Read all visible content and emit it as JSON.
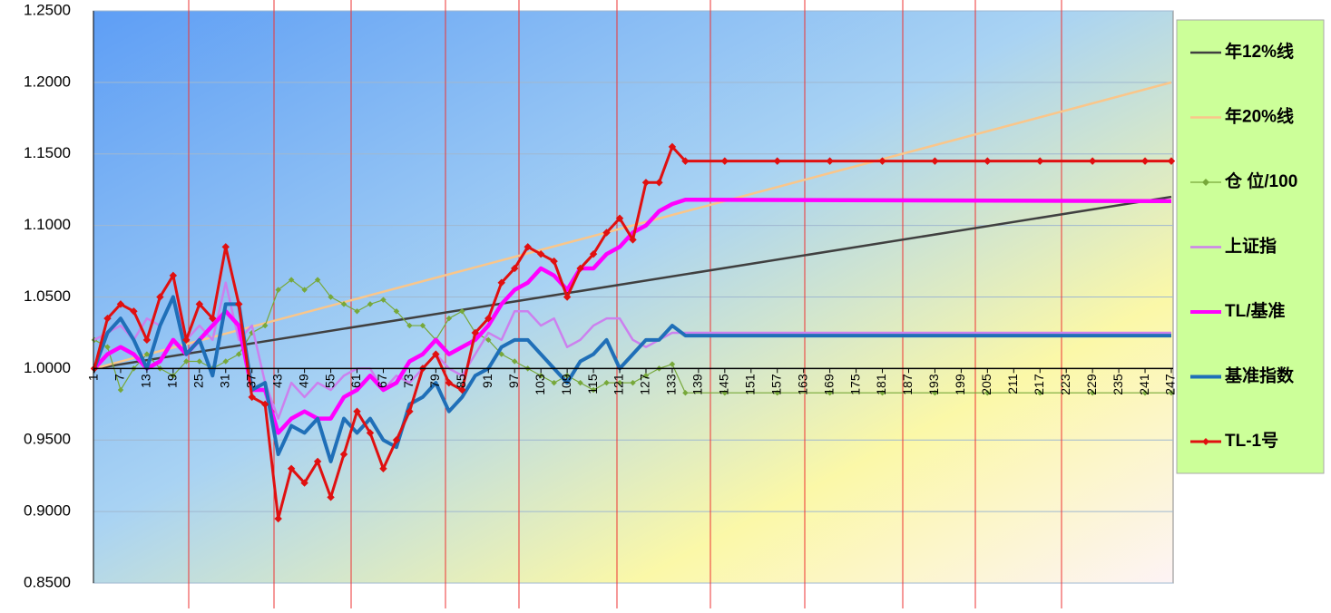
{
  "chart_data": {
    "type": "line",
    "xlim": [
      1,
      247
    ],
    "xticks": [
      1,
      7,
      13,
      19,
      25,
      31,
      37,
      43,
      49,
      55,
      61,
      67,
      73,
      79,
      85,
      91,
      97,
      103,
      109,
      115,
      121,
      127,
      133,
      139,
      145,
      151,
      157,
      163,
      169,
      175,
      181,
      187,
      193,
      199,
      205,
      211,
      217,
      223,
      229,
      235,
      241,
      247
    ],
    "ylim": [
      0.85,
      1.25
    ],
    "yticks": [
      {
        "value": 0.85,
        "label": "0.8500"
      },
      {
        "value": 0.9,
        "label": "0.9000"
      },
      {
        "value": 0.95,
        "label": "0.9500"
      },
      {
        "value": 1.0,
        "label": "1.0000"
      },
      {
        "value": 1.05,
        "label": "1.0500"
      },
      {
        "value": 1.1,
        "label": "1.1000"
      },
      {
        "value": 1.15,
        "label": "1.1500"
      },
      {
        "value": 1.2,
        "label": "1.2000"
      },
      {
        "value": 1.25,
        "label": "1.2500"
      }
    ],
    "x_axis_at": 1.0,
    "grid": true,
    "legend": "right",
    "series": [
      {
        "name": "年12%线",
        "color": "#404040",
        "width": 2.5,
        "x": [
          1,
          247
        ],
        "values": [
          1.0,
          1.12
        ]
      },
      {
        "name": "年20%线",
        "color": "#fac68a",
        "width": 2.5,
        "x": [
          1,
          247
        ],
        "values": [
          1.0,
          1.2
        ]
      },
      {
        "name": "仓 位/100",
        "color": "#77a83a",
        "width": 1.2,
        "marker": "cross",
        "x": [
          1,
          4,
          7,
          10,
          13,
          16,
          19,
          22,
          25,
          28,
          31,
          34,
          37,
          40,
          43,
          46,
          49,
          52,
          55,
          58,
          61,
          64,
          67,
          70,
          73,
          76,
          79,
          82,
          85,
          88,
          91,
          94,
          97,
          100,
          103,
          106,
          109,
          112,
          115,
          118,
          121,
          124,
          127,
          130,
          133,
          136,
          145,
          157,
          169,
          181,
          193,
          205,
          217,
          229,
          241,
          247
        ],
        "values": [
          1.02,
          1.015,
          0.985,
          1.0,
          1.01,
          1.0,
          0.995,
          1.005,
          1.005,
          1.0,
          1.005,
          1.01,
          1.025,
          1.03,
          1.055,
          1.062,
          1.055,
          1.062,
          1.05,
          1.045,
          1.04,
          1.045,
          1.048,
          1.04,
          1.03,
          1.03,
          1.02,
          1.035,
          1.04,
          1.025,
          1.02,
          1.01,
          1.005,
          1.0,
          0.995,
          0.99,
          0.995,
          0.99,
          0.985,
          0.99,
          0.99,
          0.99,
          0.995,
          1.0,
          1.003,
          0.983,
          0.983,
          0.983,
          0.983,
          0.983,
          0.983,
          0.983,
          0.983,
          0.983,
          0.983,
          0.983
        ]
      },
      {
        "name": "上证指",
        "color": "#cc80ee",
        "width": 2.5,
        "x": [
          1,
          4,
          7,
          10,
          13,
          16,
          19,
          22,
          25,
          28,
          31,
          34,
          37,
          40,
          43,
          46,
          49,
          52,
          55,
          58,
          61,
          64,
          67,
          70,
          73,
          76,
          79,
          82,
          85,
          88,
          91,
          94,
          97,
          100,
          103,
          106,
          109,
          112,
          115,
          118,
          121,
          124,
          127,
          130,
          133,
          136,
          247
        ],
        "values": [
          1.02,
          1.025,
          1.03,
          1.02,
          1.035,
          1.03,
          1.05,
          1.02,
          1.03,
          1.02,
          1.06,
          1.02,
          1.03,
          0.99,
          0.965,
          0.99,
          0.98,
          0.99,
          0.985,
          0.995,
          1.0,
          1.0,
          0.985,
          0.995,
          0.99,
          1.0,
          1.01,
          1.0,
          0.995,
          1.01,
          1.025,
          1.02,
          1.04,
          1.04,
          1.03,
          1.035,
          1.015,
          1.02,
          1.03,
          1.035,
          1.035,
          1.02,
          1.015,
          1.02,
          1.025,
          1.025,
          1.025
        ]
      },
      {
        "name": "TL/基准",
        "color": "#ff00ff",
        "width": 4.5,
        "x": [
          1,
          4,
          7,
          10,
          13,
          16,
          19,
          22,
          25,
          28,
          31,
          34,
          37,
          40,
          43,
          46,
          49,
          52,
          55,
          58,
          61,
          64,
          67,
          70,
          73,
          76,
          79,
          82,
          85,
          88,
          91,
          94,
          97,
          100,
          103,
          106,
          109,
          112,
          115,
          118,
          121,
          124,
          127,
          130,
          133,
          136,
          247
        ],
        "values": [
          1.0,
          1.01,
          1.015,
          1.01,
          1.0,
          1.005,
          1.02,
          1.01,
          1.02,
          1.03,
          1.04,
          1.03,
          0.985,
          0.985,
          0.955,
          0.965,
          0.97,
          0.965,
          0.965,
          0.98,
          0.985,
          0.995,
          0.985,
          0.99,
          1.005,
          1.01,
          1.02,
          1.01,
          1.015,
          1.02,
          1.03,
          1.045,
          1.055,
          1.06,
          1.07,
          1.065,
          1.055,
          1.07,
          1.07,
          1.08,
          1.085,
          1.095,
          1.1,
          1.11,
          1.115,
          1.118,
          1.117
        ]
      },
      {
        "name": "基准指数",
        "color": "#1f6fb8",
        "width": 4,
        "x": [
          1,
          4,
          7,
          10,
          13,
          16,
          19,
          22,
          25,
          28,
          31,
          34,
          37,
          40,
          43,
          46,
          49,
          52,
          55,
          58,
          61,
          64,
          67,
          70,
          73,
          76,
          79,
          82,
          85,
          88,
          91,
          94,
          97,
          100,
          103,
          106,
          109,
          112,
          115,
          118,
          121,
          124,
          127,
          130,
          133,
          136,
          247
        ],
        "values": [
          1.0,
          1.025,
          1.035,
          1.02,
          1.0,
          1.03,
          1.05,
          1.01,
          1.02,
          0.995,
          1.045,
          1.045,
          0.985,
          0.99,
          0.94,
          0.96,
          0.955,
          0.965,
          0.935,
          0.965,
          0.955,
          0.965,
          0.95,
          0.945,
          0.975,
          0.98,
          0.99,
          0.97,
          0.98,
          0.995,
          1.0,
          1.015,
          1.02,
          1.02,
          1.01,
          1.0,
          0.99,
          1.005,
          1.01,
          1.02,
          1.0,
          1.01,
          1.02,
          1.02,
          1.03,
          1.023,
          1.023
        ]
      },
      {
        "name": "TL-1号",
        "color": "#e01010",
        "width": 3,
        "marker": "diamond",
        "x": [
          1,
          4,
          7,
          10,
          13,
          16,
          19,
          22,
          25,
          28,
          31,
          34,
          37,
          40,
          43,
          46,
          49,
          52,
          55,
          58,
          61,
          64,
          67,
          70,
          73,
          76,
          79,
          82,
          85,
          88,
          91,
          94,
          97,
          100,
          103,
          106,
          109,
          112,
          115,
          118,
          121,
          124,
          127,
          130,
          133,
          136,
          145,
          157,
          169,
          181,
          193,
          205,
          217,
          229,
          241,
          247
        ],
        "values": [
          1.0,
          1.035,
          1.045,
          1.04,
          1.02,
          1.05,
          1.065,
          1.02,
          1.045,
          1.035,
          1.085,
          1.045,
          0.98,
          0.975,
          0.895,
          0.93,
          0.92,
          0.935,
          0.91,
          0.94,
          0.97,
          0.955,
          0.93,
          0.95,
          0.97,
          1.0,
          1.01,
          0.99,
          0.985,
          1.025,
          1.035,
          1.06,
          1.07,
          1.085,
          1.08,
          1.075,
          1.05,
          1.07,
          1.08,
          1.095,
          1.105,
          1.09,
          1.13,
          1.13,
          1.155,
          1.145,
          1.145,
          1.145,
          1.145,
          1.145,
          1.145,
          1.145,
          1.145,
          1.145,
          1.145,
          1.145
        ]
      }
    ]
  }
}
